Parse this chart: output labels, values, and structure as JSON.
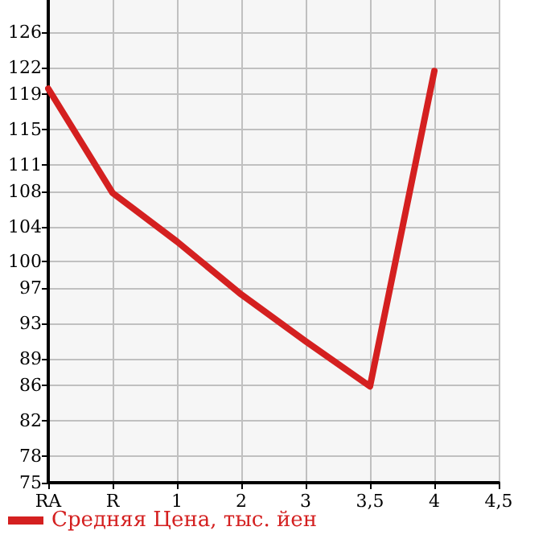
{
  "chart_data": {
    "type": "line",
    "categories": [
      "RA",
      "R",
      "1",
      "2",
      "3",
      "3,5",
      "4",
      "4,5"
    ],
    "series": [
      {
        "name": "Средняя Цена, тыс. йен",
        "color": "#d42020",
        "values": [
          119.6,
          107.8,
          102.3,
          96.3,
          91.0,
          85.9,
          121.6,
          null
        ]
      }
    ],
    "ylim": [
      75,
      129.64
    ],
    "yticks": [
      75,
      78,
      82,
      86,
      89,
      93,
      97,
      100,
      104,
      108,
      111,
      115,
      119,
      122,
      126
    ],
    "grid": true,
    "legend": "bottom left",
    "marker": "none",
    "line_style": "solid"
  }
}
